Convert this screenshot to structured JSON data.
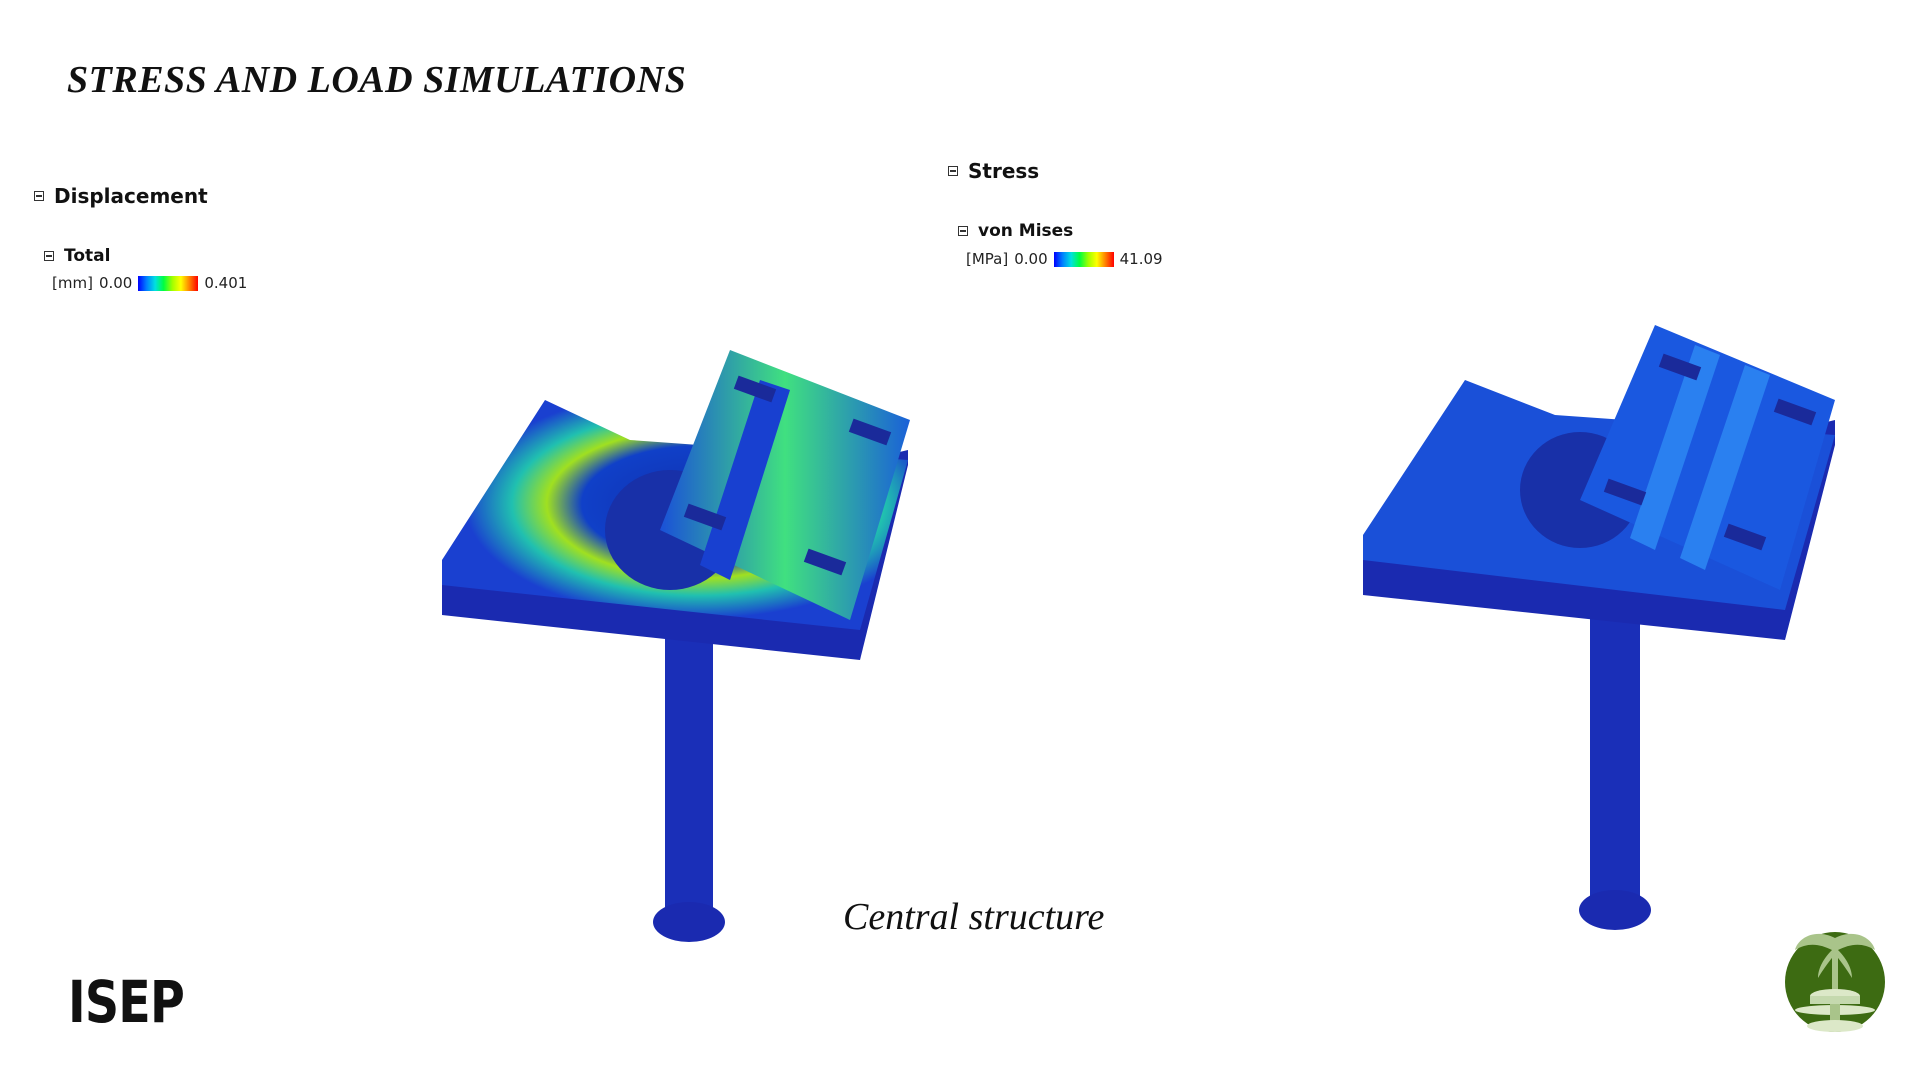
{
  "title": "STRESS AND LOAD SIMULATIONS",
  "displacement": {
    "header": "Displacement",
    "sub": "Total",
    "unit": "[mm]",
    "min": "0.00",
    "max": "0.401"
  },
  "stress": {
    "header": "Stress",
    "sub": "von Mises",
    "unit": "[MPa]",
    "min": "0.00",
    "max": "41.09"
  },
  "caption": "Central structure",
  "brand": "ISEP",
  "colors": {
    "model_base": "#1a2fc0",
    "accent_green": "#3d6b12",
    "logo_light": "#a9c48a"
  },
  "icons": [
    "collapse-icon",
    "palm-table-logo"
  ]
}
